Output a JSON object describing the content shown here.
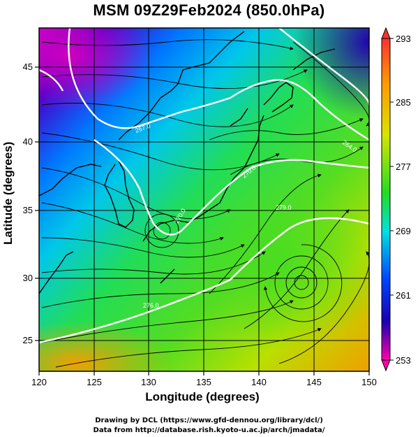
{
  "title": "MSM 09Z29Feb2024 (850.0hPa)",
  "x_label": "Longitude (degrees)",
  "y_label": "Latitude  (degrees)",
  "x_ticks": [
    "120",
    "125",
    "130",
    "135",
    "140",
    "145",
    "150"
  ],
  "y_ticks": [
    "25",
    "30",
    "35",
    "40",
    "45"
  ],
  "colorbar": {
    "ticks": [
      "293",
      "285",
      "277",
      "269",
      "261",
      "253"
    ],
    "colors": [
      "#ff3030",
      "#ff9a00",
      "#e6e600",
      "#22dd22",
      "#00e0e0",
      "#0044ff",
      "#1a00b0",
      "#ff00aa"
    ]
  },
  "contour_labels": [
    "279.0",
    "276.0",
    "270.0",
    "270.0",
    "267.0",
    "264.0"
  ],
  "map_features": [
    "coastline-japan",
    "coastline-korea",
    "coastline-china",
    "streamlines",
    "isotherms"
  ],
  "credits": {
    "line1": "Drawing by DCL (https://www.gfd-dennou.org/library/dcl/)",
    "line2": "Data from http://database.rish.kyoto-u.ac.jp/arch/jmadata/"
  }
}
